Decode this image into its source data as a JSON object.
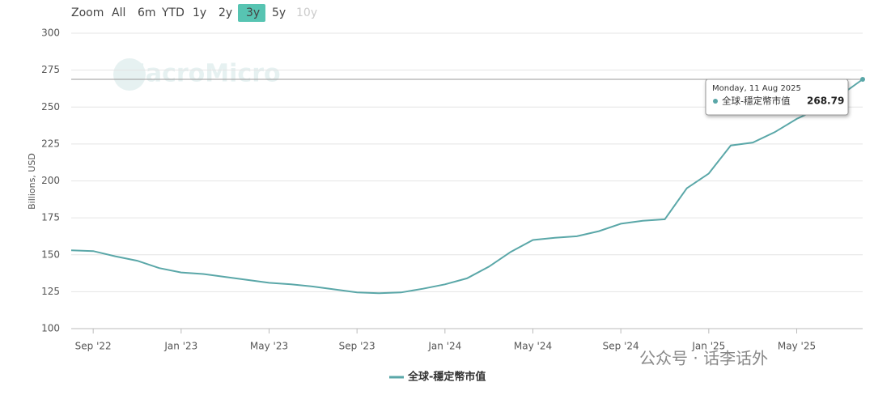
{
  "zoom_buttons": [
    "Zoom",
    "All",
    "6m",
    "YTD",
    "1y",
    "2y",
    "3y",
    "5y",
    "10y"
  ],
  "watermark": "MacroMicro",
  "footer_watermark": "公众号 · 话李话外",
  "tooltip": {
    "date": "Monday, 11 Aug 2025"
  },
  "chart_data": {
    "type": "line",
    "y_label": "Billions, USD",
    "x": [
      "2022-08",
      "2022-09",
      "2022-10",
      "2022-11",
      "2022-12",
      "2023-01",
      "2023-02",
      "2023-03",
      "2023-04",
      "2023-05",
      "2023-06",
      "2023-07",
      "2023-08",
      "2023-09",
      "2023-10",
      "2023-11",
      "2023-12",
      "2024-01",
      "2024-02",
      "2024-03",
      "2024-04",
      "2024-05",
      "2024-06",
      "2024-07",
      "2024-08",
      "2024-09",
      "2024-10",
      "2024-11",
      "2024-12",
      "2025-01",
      "2025-02",
      "2025-03",
      "2025-04",
      "2025-05",
      "2025-06",
      "2025-07",
      "2025-08"
    ],
    "series": [
      {
        "name": "全球-穩定幣市值",
        "color": "#5aa7a8",
        "values": [
          153,
          152.5,
          149,
          146,
          141,
          138,
          137,
          135,
          133,
          131,
          130,
          128.5,
          126.5,
          124.5,
          124,
          124.5,
          127,
          130,
          134,
          142,
          152,
          160,
          161.5,
          162.5,
          166,
          171,
          173,
          174,
          195,
          205,
          224,
          226,
          233,
          242,
          249,
          258,
          268.79
        ]
      }
    ],
    "xlim": [
      "2022-08",
      "2025-08"
    ],
    "xticks": [
      {
        "value": "2022-09",
        "label": "Sep '22"
      },
      {
        "value": "2023-01",
        "label": "Jan '23"
      },
      {
        "value": "2023-05",
        "label": "May '23"
      },
      {
        "value": "2023-09",
        "label": "Sep '23"
      },
      {
        "value": "2024-01",
        "label": "Jan '24"
      },
      {
        "value": "2024-05",
        "label": "May '24"
      },
      {
        "value": "2024-09",
        "label": "Sep '24"
      },
      {
        "value": "2025-01",
        "label": "Jan '25"
      },
      {
        "value": "2025-05",
        "label": "May '25"
      }
    ],
    "ylim": [
      100,
      300
    ],
    "yticks": [
      100,
      125,
      150,
      175,
      200,
      225,
      250,
      275,
      300
    ],
    "grid": true
  }
}
